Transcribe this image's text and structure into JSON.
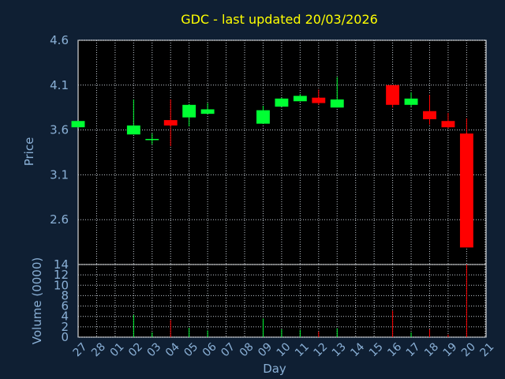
{
  "chart_data": {
    "type": "candlestick",
    "title": "GDC - last updated 20/03/2026",
    "xlabel": "Day",
    "ylabel_price": "Price",
    "ylabel_volume": "Volume (0000)",
    "price_ylim": [
      2.1,
      4.6
    ],
    "price_ticks": [
      2.6,
      3.1,
      3.6,
      4.1,
      4.6
    ],
    "volume_ylim": [
      0,
      14
    ],
    "volume_ticks": [
      0,
      2,
      4,
      6,
      8,
      10,
      12,
      14
    ],
    "day_labels": [
      "27",
      "28",
      "01",
      "02",
      "03",
      "04",
      "05",
      "06",
      "07",
      "08",
      "09",
      "10",
      "11",
      "12",
      "13",
      "14",
      "15",
      "16",
      "17",
      "18",
      "19",
      "20",
      "21"
    ],
    "grid": true,
    "colors": {
      "up": "#00ff33",
      "down": "#ff0000",
      "title": "#ffff00",
      "axis_text": "#8ab0d6",
      "grid": "#c0c8d0"
    },
    "candles": [
      {
        "day": "27",
        "open": 3.63,
        "high": 3.7,
        "low": 3.63,
        "close": 3.7,
        "volume": 0.0
      },
      {
        "day": "02",
        "open": 3.55,
        "high": 3.94,
        "low": 3.55,
        "close": 3.65,
        "volume": 4.3
      },
      {
        "day": "03",
        "open": 3.5,
        "high": 3.56,
        "low": 3.44,
        "close": 3.5,
        "volume": 0.9
      },
      {
        "day": "04",
        "open": 3.71,
        "high": 3.94,
        "low": 3.42,
        "close": 3.65,
        "volume": 3.3
      },
      {
        "day": "05",
        "open": 3.74,
        "high": 3.89,
        "low": 3.64,
        "close": 3.88,
        "volume": 1.8
      },
      {
        "day": "06",
        "open": 3.78,
        "high": 3.9,
        "low": 3.78,
        "close": 3.83,
        "volume": 1.3
      },
      {
        "day": "09",
        "open": 3.67,
        "high": 3.87,
        "low": 3.67,
        "close": 3.82,
        "volume": 3.6
      },
      {
        "day": "10",
        "open": 3.86,
        "high": 3.96,
        "low": 3.86,
        "close": 3.95,
        "volume": 1.5
      },
      {
        "day": "11",
        "open": 3.92,
        "high": 4.0,
        "low": 3.92,
        "close": 3.98,
        "volume": 1.4
      },
      {
        "day": "12",
        "open": 3.96,
        "high": 4.05,
        "low": 3.88,
        "close": 3.9,
        "volume": 1.1
      },
      {
        "day": "13",
        "open": 3.85,
        "high": 4.19,
        "low": 3.85,
        "close": 3.94,
        "volume": 1.7
      },
      {
        "day": "16",
        "open": 4.1,
        "high": 4.1,
        "low": 3.85,
        "close": 3.88,
        "volume": 5.1
      },
      {
        "day": "17",
        "open": 3.88,
        "high": 4.02,
        "low": 3.86,
        "close": 3.95,
        "volume": 0.9
      },
      {
        "day": "18",
        "open": 3.81,
        "high": 3.99,
        "low": 3.66,
        "close": 3.72,
        "volume": 1.5
      },
      {
        "day": "19",
        "open": 3.7,
        "high": 3.79,
        "low": 3.62,
        "close": 3.63,
        "volume": 0.5
      },
      {
        "day": "20",
        "open": 3.56,
        "high": 3.73,
        "low": 2.29,
        "close": 2.29,
        "volume": 14.0
      }
    ]
  }
}
